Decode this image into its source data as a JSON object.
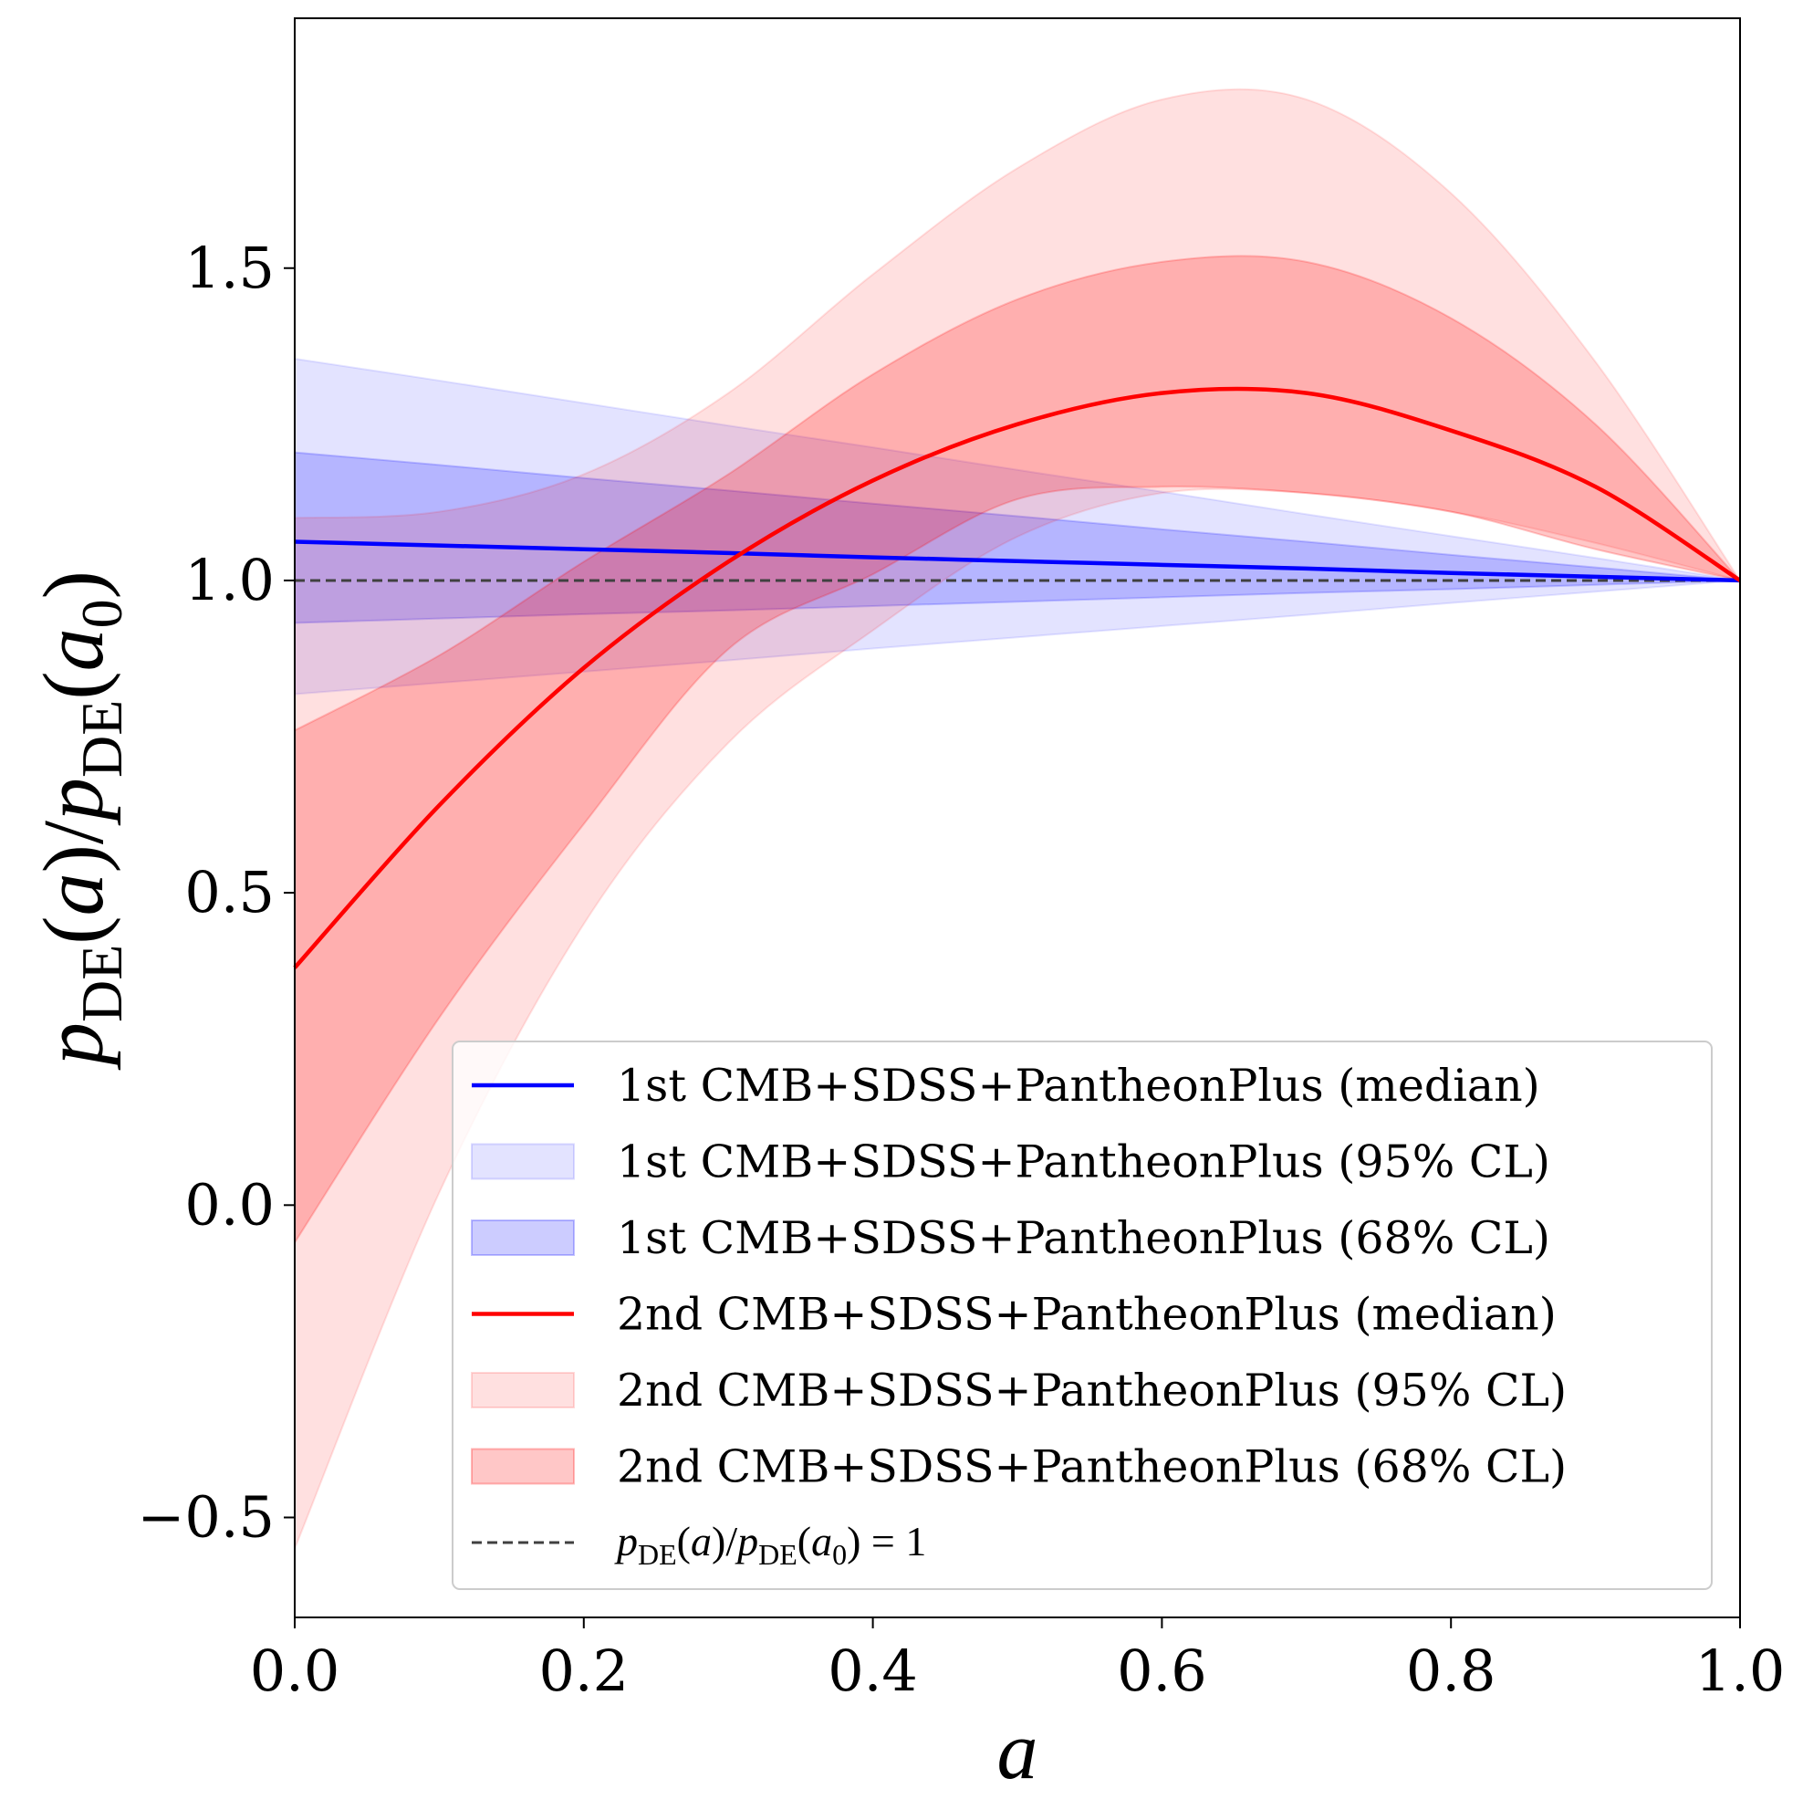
{
  "chart_data": {
    "type": "area",
    "xlabel": "a",
    "ylabel": {
      "p": "p",
      "sub": "DE",
      "open": "(",
      "arg": "a",
      "close": ")",
      "slash": "/",
      "arg0": "a",
      "zero": "0"
    },
    "xlim": [
      0.0,
      1.0
    ],
    "ylim": [
      -0.66,
      1.9
    ],
    "x_ticks": [
      0.0,
      0.2,
      0.4,
      0.6,
      0.8,
      1.0
    ],
    "x_tick_labels": [
      "0.0",
      "0.2",
      "0.4",
      "0.6",
      "0.8",
      "1.0"
    ],
    "y_ticks": [
      -0.5,
      0.0,
      0.5,
      1.0,
      1.5
    ],
    "y_tick_labels": [
      "−0.5",
      "0.0",
      "0.5",
      "1.0",
      "1.5"
    ],
    "grid": false,
    "legend_position": "lower-right",
    "x": [
      0.0,
      0.1,
      0.2,
      0.3,
      0.4,
      0.5,
      0.6,
      0.7,
      0.8,
      0.9,
      1.0
    ],
    "series": [
      {
        "key": "blue_median",
        "name": "1st CMB+SDSS+PantheonPlus (median)",
        "kind": "line",
        "color": "#0000ff",
        "values": [
          1.062,
          1.056,
          1.05,
          1.044,
          1.037,
          1.031,
          1.025,
          1.019,
          1.012,
          1.006,
          1.0
        ]
      },
      {
        "key": "blue_95",
        "name": "1st CMB+SDSS+PantheonPlus (95% CL)",
        "kind": "band",
        "color": "#0000ff",
        "opacity": 0.11,
        "upper": [
          1.355,
          1.32,
          1.284,
          1.248,
          1.213,
          1.177,
          1.142,
          1.106,
          1.071,
          1.036,
          1.0
        ],
        "lower": [
          0.818,
          0.836,
          0.854,
          0.872,
          0.891,
          0.909,
          0.927,
          0.945,
          0.964,
          0.982,
          1.0
        ]
      },
      {
        "key": "blue_68",
        "name": "1st CMB+SDSS+PantheonPlus (68% CL)",
        "kind": "band",
        "color": "#0000ff",
        "opacity": 0.2,
        "upper": [
          1.205,
          1.185,
          1.164,
          1.144,
          1.123,
          1.103,
          1.082,
          1.062,
          1.041,
          1.021,
          1.0
        ],
        "lower": [
          0.932,
          0.939,
          0.946,
          0.952,
          0.959,
          0.966,
          0.973,
          0.98,
          0.986,
          0.993,
          1.0
        ]
      },
      {
        "key": "red_median",
        "name": "2nd CMB+SDSS+PantheonPlus (median)",
        "kind": "line",
        "color": "#ff0000",
        "values": [
          0.38,
          0.64,
          0.86,
          1.03,
          1.16,
          1.25,
          1.3,
          1.3,
          1.24,
          1.15,
          1.0
        ]
      },
      {
        "key": "red_95",
        "name": "2nd CMB+SDSS+PantheonPlus (95% CL)",
        "kind": "band",
        "color": "#ff0000",
        "opacity": 0.12,
        "upper": [
          1.1,
          1.11,
          1.17,
          1.3,
          1.49,
          1.66,
          1.77,
          1.77,
          1.62,
          1.35,
          1.0
        ],
        "lower": [
          -0.55,
          0.02,
          0.45,
          0.74,
          0.92,
          1.07,
          1.14,
          1.14,
          1.11,
          1.06,
          1.0
        ]
      },
      {
        "key": "red_68",
        "name": "2nd CMB+SDSS+PantheonPlus (68% CL)",
        "kind": "band",
        "color": "#ff0000",
        "opacity": 0.22,
        "upper": [
          0.76,
          0.88,
          1.03,
          1.17,
          1.33,
          1.45,
          1.51,
          1.51,
          1.42,
          1.25,
          1.0
        ],
        "lower": [
          -0.06,
          0.3,
          0.61,
          0.89,
          1.01,
          1.13,
          1.15,
          1.14,
          1.11,
          1.05,
          1.0
        ]
      },
      {
        "key": "ref_line",
        "name": "",
        "kind": "dashed",
        "color": "#404040",
        "y": 1.0
      }
    ],
    "legend": [
      {
        "key": "blue_median",
        "style": "line",
        "label": "1st CMB+SDSS+PantheonPlus (median)"
      },
      {
        "key": "blue_95",
        "style": "patch",
        "label": "1st CMB+SDSS+PantheonPlus (95% CL)"
      },
      {
        "key": "blue_68",
        "style": "patch",
        "label": "1st CMB+SDSS+PantheonPlus (68% CL)"
      },
      {
        "key": "red_median",
        "style": "line",
        "label": "2nd CMB+SDSS+PantheonPlus (median)"
      },
      {
        "key": "red_95",
        "style": "patch",
        "label": "2nd CMB+SDSS+PantheonPlus (95% CL)"
      },
      {
        "key": "red_68",
        "style": "patch",
        "label": "2nd CMB+SDSS+PantheonPlus (68% CL)"
      },
      {
        "key": "ref_line",
        "style": "dashed",
        "label_math": {
          "p": "p",
          "sub": "DE",
          "open": "(",
          "arg": "a",
          "close": ")",
          "slash": "/",
          "arg0": "a",
          "zero": "0",
          "eq": "=",
          "one": "1"
        }
      }
    ]
  }
}
